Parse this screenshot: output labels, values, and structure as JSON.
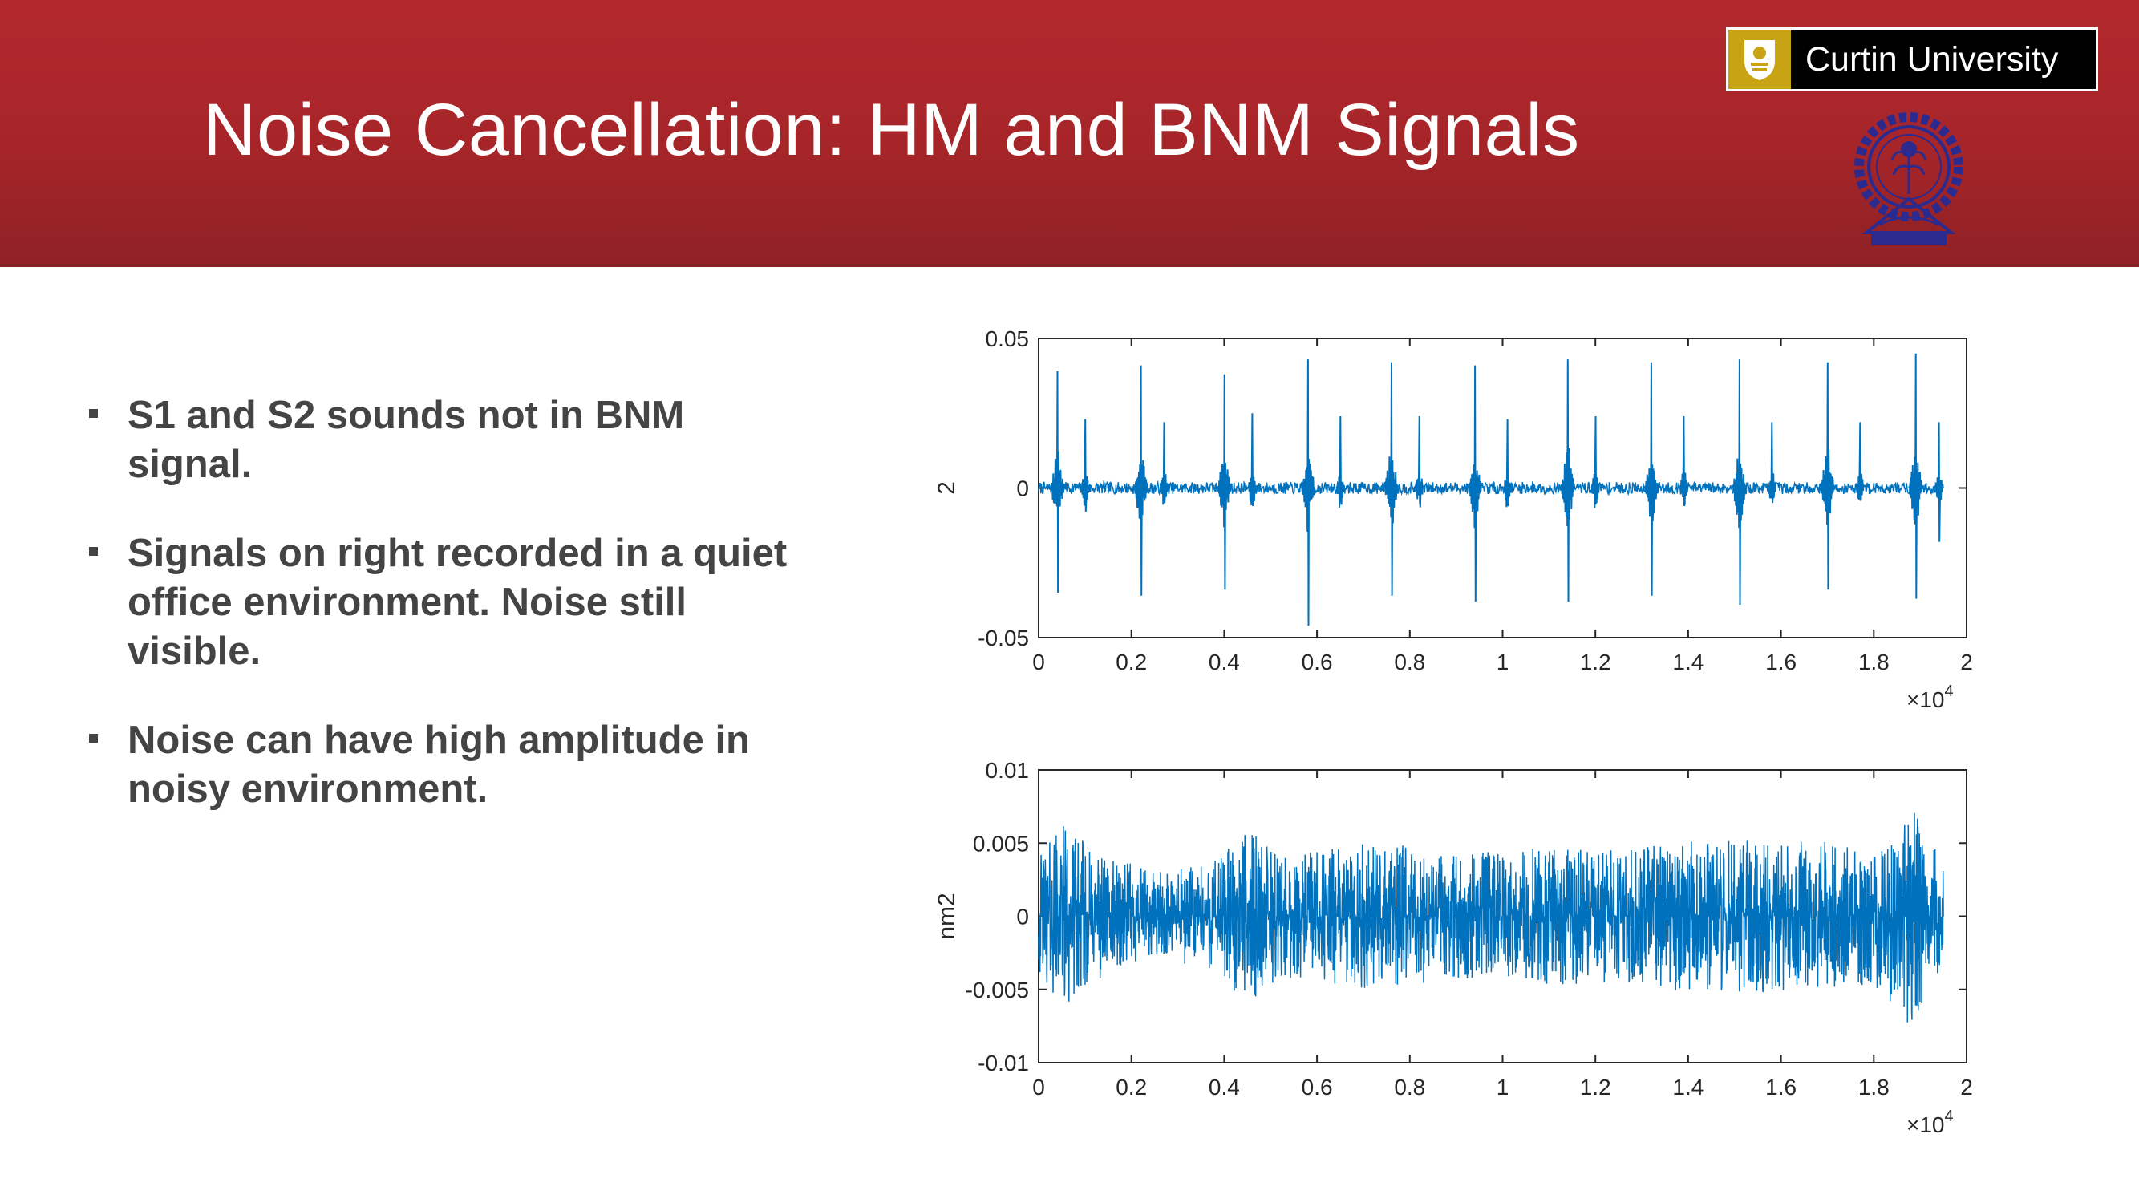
{
  "slide": {
    "title": "Noise Cancellation: HM and BNM Signals",
    "curtin_logo_text": "Curtin University",
    "bullets": [
      "S1 and S2 sounds not in BNM signal.",
      "Signals on right recorded in a quiet office environment. Noise still visible.",
      "Noise can have high amplitude in noisy environment."
    ],
    "colors": {
      "header": "#b3282d",
      "signal": "#0072bd",
      "text": "#444444"
    }
  },
  "chart_data": [
    {
      "type": "line",
      "ylabel": "2",
      "xlim": [
        0,
        20000
      ],
      "ylim": [
        -0.05,
        0.05
      ],
      "xticks": [
        "0",
        "0.2",
        "0.4",
        "0.6",
        "0.8",
        "1",
        "1.2",
        "1.4",
        "1.6",
        "1.8",
        "2"
      ],
      "yticks": [
        "-0.05",
        "0",
        "0.05"
      ],
      "x_multiplier": "×10",
      "x_multiplier_exp": "4",
      "signal_end": 19500,
      "noise_amplitude": 0.002,
      "s1_peaks": [
        {
          "x": 400,
          "y": 0.039
        },
        {
          "x": 2200,
          "y": 0.041
        },
        {
          "x": 4000,
          "y": 0.038
        },
        {
          "x": 5800,
          "y": 0.043
        },
        {
          "x": 7600,
          "y": 0.042
        },
        {
          "x": 9400,
          "y": 0.041
        },
        {
          "x": 11400,
          "y": 0.043
        },
        {
          "x": 13200,
          "y": 0.042
        },
        {
          "x": 15100,
          "y": 0.043
        },
        {
          "x": 17000,
          "y": 0.042
        },
        {
          "x": 18900,
          "y": 0.045
        }
      ],
      "s1_troughs": [
        -0.035,
        -0.036,
        -0.034,
        -0.046,
        -0.036,
        -0.038,
        -0.038,
        -0.036,
        -0.039,
        -0.034,
        -0.037
      ],
      "s2_peaks": [
        {
          "x": 1000,
          "y": 0.023
        },
        {
          "x": 2700,
          "y": 0.022
        },
        {
          "x": 4600,
          "y": 0.025
        },
        {
          "x": 6500,
          "y": 0.024
        },
        {
          "x": 8200,
          "y": 0.024
        },
        {
          "x": 10100,
          "y": 0.023
        },
        {
          "x": 12000,
          "y": 0.024
        },
        {
          "x": 13900,
          "y": 0.024
        },
        {
          "x": 15800,
          "y": 0.022
        },
        {
          "x": 17700,
          "y": 0.022
        },
        {
          "x": 19400,
          "y": 0.022
        }
      ],
      "s2_troughs": [
        -0.008,
        -0.005,
        -0.006,
        -0.004,
        -0.005,
        -0.006,
        -0.005,
        -0.006,
        -0.005,
        -0.004,
        -0.018
      ]
    },
    {
      "type": "line",
      "ylabel": "nm2",
      "xlim": [
        0,
        20000
      ],
      "ylim": [
        -0.01,
        0.01
      ],
      "xticks": [
        "0",
        "0.2",
        "0.4",
        "0.6",
        "0.8",
        "1",
        "1.2",
        "1.4",
        "1.6",
        "1.8",
        "2"
      ],
      "yticks": [
        "-0.01",
        "-0.005",
        "0",
        "0.005",
        "0.01"
      ],
      "x_multiplier": "×10",
      "x_multiplier_exp": "4",
      "signal_end": 19500,
      "envelope": [
        {
          "x": 0,
          "amp": 0.004
        },
        {
          "x": 500,
          "amp": 0.0065
        },
        {
          "x": 1200,
          "amp": 0.0045
        },
        {
          "x": 2500,
          "amp": 0.003
        },
        {
          "x": 3500,
          "amp": 0.0035
        },
        {
          "x": 4500,
          "amp": 0.0058
        },
        {
          "x": 5500,
          "amp": 0.0042
        },
        {
          "x": 7500,
          "amp": 0.0052
        },
        {
          "x": 9000,
          "amp": 0.0042
        },
        {
          "x": 11000,
          "amp": 0.0048
        },
        {
          "x": 12500,
          "amp": 0.0045
        },
        {
          "x": 14000,
          "amp": 0.0052
        },
        {
          "x": 16500,
          "amp": 0.0052
        },
        {
          "x": 18000,
          "amp": 0.0048
        },
        {
          "x": 18800,
          "amp": 0.0078
        },
        {
          "x": 19500,
          "amp": 0.0035
        }
      ]
    }
  ]
}
